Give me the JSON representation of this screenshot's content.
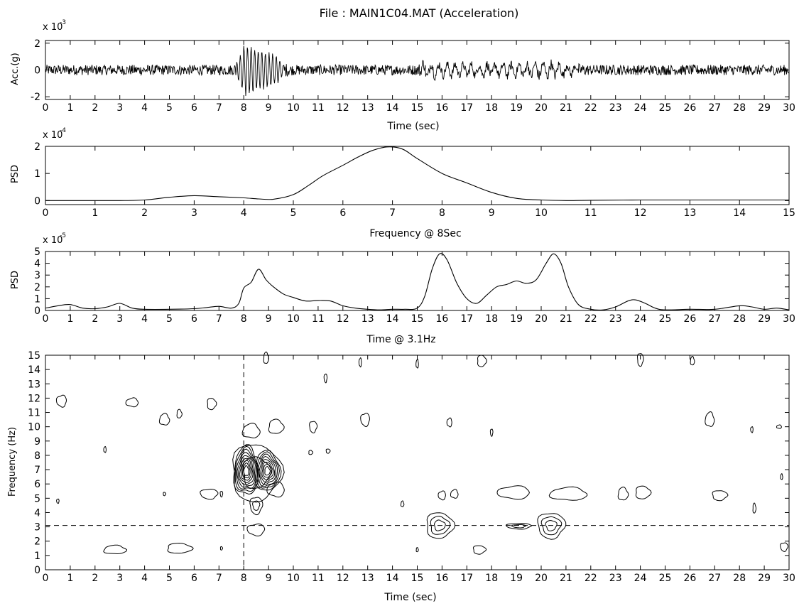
{
  "title": "File :  MAIN1C04.MAT (Acceleration)",
  "chart_data": [
    {
      "type": "line",
      "id": "acceleration",
      "xlabel": "Time (sec)",
      "ylabel": "Acc.(g)",
      "exponent_base": "x 10",
      "exponent_power": "-3",
      "xlim": [
        0,
        30
      ],
      "ylim": [
        -2.2,
        2.2
      ],
      "xticks": [
        0,
        1,
        2,
        3,
        4,
        5,
        6,
        7,
        8,
        9,
        10,
        11,
        12,
        13,
        14,
        15,
        16,
        17,
        18,
        19,
        20,
        21,
        22,
        23,
        24,
        25,
        26,
        27,
        28,
        29,
        30
      ],
      "yticks": [
        -2,
        0,
        2
      ],
      "amplitude_envelope": [
        [
          0,
          0.35
        ],
        [
          7.6,
          0.35
        ],
        [
          7.8,
          1.0
        ],
        [
          8.0,
          2.0
        ],
        [
          8.3,
          1.9
        ],
        [
          8.6,
          1.6
        ],
        [
          9.0,
          1.4
        ],
        [
          9.3,
          1.2
        ],
        [
          9.6,
          0.5
        ],
        [
          10,
          0.35
        ],
        [
          15,
          0.35
        ],
        [
          15.3,
          0.8
        ],
        [
          16,
          0.55
        ],
        [
          17,
          0.55
        ],
        [
          18,
          0.6
        ],
        [
          19,
          0.55
        ],
        [
          20,
          0.7
        ],
        [
          21,
          0.55
        ],
        [
          22,
          0.35
        ],
        [
          30,
          0.35
        ]
      ]
    },
    {
      "type": "line",
      "id": "psd-frequency",
      "xlabel": "Frequency @ 8Sec",
      "ylabel": "PSD",
      "exponent_base": "x 10",
      "exponent_power": "-4",
      "xlim": [
        0,
        15
      ],
      "ylim": [
        -0.15,
        2
      ],
      "xticks": [
        0,
        1,
        2,
        3,
        4,
        5,
        6,
        7,
        8,
        9,
        10,
        11,
        12,
        13,
        14,
        15
      ],
      "yticks": [
        0,
        1,
        2
      ],
      "x": [
        0,
        1,
        1.5,
        2,
        2.5,
        3,
        3.5,
        4,
        4.3,
        4.6,
        5,
        5.3,
        5.6,
        6,
        6.3,
        6.6,
        6.9,
        7.2,
        7.5,
        8,
        8.5,
        9,
        9.5,
        10,
        10.5,
        11,
        12,
        13,
        14,
        15
      ],
      "y": [
        0,
        0,
        0,
        0.02,
        0.12,
        0.18,
        0.14,
        0.1,
        0.06,
        0.05,
        0.22,
        0.55,
        0.92,
        1.3,
        1.6,
        1.85,
        1.98,
        1.9,
        1.55,
        1.0,
        0.65,
        0.3,
        0.08,
        0.02,
        0,
        0.01,
        0.02,
        0.02,
        0.02,
        0.02
      ]
    },
    {
      "type": "line",
      "id": "psd-time",
      "xlabel": "Time @ 3.1Hz",
      "ylabel": "PSD",
      "exponent_base": "x 10",
      "exponent_power": "-5",
      "xlim": [
        0,
        30
      ],
      "ylim": [
        0,
        5
      ],
      "xticks": [
        0,
        1,
        2,
        3,
        4,
        5,
        6,
        7,
        8,
        9,
        10,
        11,
        12,
        13,
        14,
        15,
        16,
        17,
        18,
        19,
        20,
        21,
        22,
        23,
        24,
        25,
        26,
        27,
        28,
        29,
        30
      ],
      "yticks": [
        0,
        1,
        2,
        3,
        4,
        5
      ],
      "x": [
        0,
        0.5,
        1,
        1.5,
        2,
        2.5,
        3,
        3.5,
        4,
        5,
        6,
        6.5,
        7,
        7.5,
        7.8,
        8,
        8.3,
        8.6,
        8.9,
        9.2,
        9.6,
        10,
        10.5,
        11,
        11.5,
        12,
        12.5,
        13,
        13.5,
        14,
        14.5,
        15,
        15.3,
        15.6,
        15.9,
        16.2,
        16.6,
        17,
        17.4,
        17.8,
        18.2,
        18.6,
        19,
        19.4,
        19.8,
        20.2,
        20.5,
        20.8,
        21.1,
        21.5,
        22,
        22.5,
        23,
        23.5,
        23.8,
        24.2,
        24.6,
        25,
        26,
        27,
        28,
        28.5,
        29,
        29.5,
        30
      ],
      "y": [
        0.2,
        0.4,
        0.5,
        0.2,
        0.15,
        0.3,
        0.6,
        0.2,
        0.1,
        0.1,
        0.15,
        0.25,
        0.35,
        0.2,
        0.6,
        1.9,
        2.4,
        3.5,
        2.6,
        2.0,
        1.4,
        1.1,
        0.8,
        0.85,
        0.8,
        0.4,
        0.2,
        0.1,
        0.05,
        0.1,
        0.1,
        0.2,
        1.2,
        3.5,
        4.8,
        4.3,
        2.3,
        1.0,
        0.6,
        1.3,
        2.0,
        2.2,
        2.5,
        2.3,
        2.6,
        4.0,
        4.8,
        4.0,
        2.0,
        0.5,
        0.1,
        0.05,
        0.3,
        0.8,
        0.9,
        0.6,
        0.2,
        0.05,
        0.1,
        0.1,
        0.4,
        0.3,
        0.1,
        0.2,
        0.05
      ]
    },
    {
      "type": "contour",
      "id": "time-frequency",
      "xlabel": "Time (sec)",
      "ylabel": "Frequency (Hz)",
      "xlim": [
        0,
        30
      ],
      "ylim": [
        0,
        15
      ],
      "xticks": [
        0,
        1,
        2,
        3,
        4,
        5,
        6,
        7,
        8,
        9,
        10,
        11,
        12,
        13,
        14,
        15,
        16,
        17,
        18,
        19,
        20,
        21,
        22,
        23,
        24,
        25,
        26,
        27,
        28,
        29,
        30
      ],
      "yticks": [
        0,
        1,
        2,
        3,
        4,
        5,
        6,
        7,
        8,
        9,
        10,
        11,
        12,
        13,
        14,
        15
      ],
      "crosshair": {
        "time": 8.0,
        "frequency": 3.1
      },
      "blobs": [
        {
          "t": 8.1,
          "f": 6.9,
          "dt": 0.5,
          "df": 1.7,
          "levels": 9
        },
        {
          "t": 8.95,
          "f": 6.9,
          "dt": 0.5,
          "df": 1.4,
          "levels": 8
        },
        {
          "t": 8.5,
          "f": 6.8,
          "dt": 1.0,
          "df": 2.0,
          "levels": 2
        },
        {
          "t": 8.5,
          "f": 4.5,
          "dt": 0.25,
          "df": 0.6,
          "levels": 2
        },
        {
          "t": 8.5,
          "f": 2.8,
          "dt": 0.35,
          "df": 0.4,
          "levels": 1
        },
        {
          "t": 9.3,
          "f": 5.6,
          "dt": 0.35,
          "df": 0.5,
          "levels": 1
        },
        {
          "t": 8.3,
          "f": 9.7,
          "dt": 0.35,
          "df": 0.5,
          "levels": 1
        },
        {
          "t": 9.3,
          "f": 10.0,
          "dt": 0.3,
          "df": 0.5,
          "levels": 1
        },
        {
          "t": 15.9,
          "f": 3.1,
          "dt": 0.55,
          "df": 0.9,
          "levels": 3
        },
        {
          "t": 20.4,
          "f": 3.1,
          "dt": 0.55,
          "df": 0.9,
          "levels": 3
        },
        {
          "t": 19.1,
          "f": 3.05,
          "dt": 0.5,
          "df": 0.2,
          "levels": 2
        },
        {
          "t": 18.9,
          "f": 5.4,
          "dt": 0.65,
          "df": 0.45,
          "levels": 1
        },
        {
          "t": 21.1,
          "f": 5.3,
          "dt": 0.75,
          "df": 0.45,
          "levels": 1
        },
        {
          "t": 23.3,
          "f": 5.3,
          "dt": 0.2,
          "df": 0.45,
          "levels": 1
        },
        {
          "t": 24.1,
          "f": 5.4,
          "dt": 0.3,
          "df": 0.45,
          "levels": 1
        },
        {
          "t": 27.2,
          "f": 5.2,
          "dt": 0.3,
          "df": 0.35,
          "levels": 1
        },
        {
          "t": 6.6,
          "f": 5.3,
          "dt": 0.35,
          "df": 0.35,
          "levels": 1
        },
        {
          "t": 16.0,
          "f": 5.2,
          "dt": 0.15,
          "df": 0.3,
          "levels": 1
        },
        {
          "t": 16.5,
          "f": 5.3,
          "dt": 0.15,
          "df": 0.3,
          "levels": 1
        },
        {
          "t": 2.8,
          "f": 1.4,
          "dt": 0.45,
          "df": 0.3,
          "levels": 1
        },
        {
          "t": 5.4,
          "f": 1.5,
          "dt": 0.5,
          "df": 0.35,
          "levels": 1
        },
        {
          "t": 17.5,
          "f": 1.4,
          "dt": 0.25,
          "df": 0.3,
          "levels": 1
        },
        {
          "t": 29.8,
          "f": 1.6,
          "dt": 0.15,
          "df": 0.3,
          "levels": 1
        },
        {
          "t": 0.65,
          "f": 11.8,
          "dt": 0.2,
          "df": 0.4,
          "levels": 1
        },
        {
          "t": 3.5,
          "f": 11.7,
          "dt": 0.25,
          "df": 0.3,
          "levels": 1
        },
        {
          "t": 4.8,
          "f": 10.5,
          "dt": 0.2,
          "df": 0.4,
          "levels": 1
        },
        {
          "t": 5.4,
          "f": 10.9,
          "dt": 0.1,
          "df": 0.3,
          "levels": 1
        },
        {
          "t": 6.7,
          "f": 11.6,
          "dt": 0.18,
          "df": 0.4,
          "levels": 1
        },
        {
          "t": 10.8,
          "f": 10.0,
          "dt": 0.15,
          "df": 0.4,
          "levels": 1
        },
        {
          "t": 12.9,
          "f": 10.5,
          "dt": 0.18,
          "df": 0.45,
          "levels": 1
        },
        {
          "t": 16.3,
          "f": 10.3,
          "dt": 0.1,
          "df": 0.3,
          "levels": 1
        },
        {
          "t": 26.8,
          "f": 10.5,
          "dt": 0.18,
          "df": 0.5,
          "levels": 1
        },
        {
          "t": 8.9,
          "f": 14.8,
          "dt": 0.1,
          "df": 0.4,
          "levels": 1
        },
        {
          "t": 17.6,
          "f": 14.6,
          "dt": 0.18,
          "df": 0.4,
          "levels": 1
        },
        {
          "t": 24.0,
          "f": 14.7,
          "dt": 0.12,
          "df": 0.45,
          "levels": 1
        },
        {
          "t": 11.3,
          "f": 13.4,
          "dt": 0.06,
          "df": 0.3,
          "levels": 1
        },
        {
          "t": 12.7,
          "f": 14.5,
          "dt": 0.05,
          "df": 0.3,
          "levels": 1
        },
        {
          "t": 15.0,
          "f": 14.4,
          "dt": 0.05,
          "df": 0.3,
          "levels": 1
        },
        {
          "t": 26.1,
          "f": 14.6,
          "dt": 0.08,
          "df": 0.3,
          "levels": 1
        },
        {
          "t": 10.7,
          "f": 8.2,
          "dt": 0.08,
          "df": 0.15,
          "levels": 1
        },
        {
          "t": 11.4,
          "f": 8.3,
          "dt": 0.08,
          "df": 0.15,
          "levels": 1
        },
        {
          "t": 18.0,
          "f": 9.6,
          "dt": 0.05,
          "df": 0.25,
          "levels": 1
        },
        {
          "t": 28.5,
          "f": 9.8,
          "dt": 0.05,
          "df": 0.2,
          "levels": 1
        },
        {
          "t": 29.6,
          "f": 10.0,
          "dt": 0.1,
          "df": 0.12,
          "levels": 1
        },
        {
          "t": 14.4,
          "f": 4.6,
          "dt": 0.06,
          "df": 0.2,
          "levels": 1
        },
        {
          "t": 28.6,
          "f": 4.3,
          "dt": 0.06,
          "df": 0.35,
          "levels": 1
        },
        {
          "t": 4.8,
          "f": 5.3,
          "dt": 0.05,
          "df": 0.12,
          "levels": 1
        },
        {
          "t": 7.1,
          "f": 5.3,
          "dt": 0.05,
          "df": 0.2,
          "levels": 1
        },
        {
          "t": 0.5,
          "f": 4.8,
          "dt": 0.05,
          "df": 0.15,
          "levels": 1
        },
        {
          "t": 2.4,
          "f": 8.4,
          "dt": 0.05,
          "df": 0.2,
          "levels": 1
        },
        {
          "t": 29.7,
          "f": 6.5,
          "dt": 0.04,
          "df": 0.2,
          "levels": 1
        },
        {
          "t": 15.0,
          "f": 1.4,
          "dt": 0.04,
          "df": 0.15,
          "levels": 1
        },
        {
          "t": 7.1,
          "f": 1.5,
          "dt": 0.04,
          "df": 0.12,
          "levels": 1
        }
      ]
    }
  ]
}
